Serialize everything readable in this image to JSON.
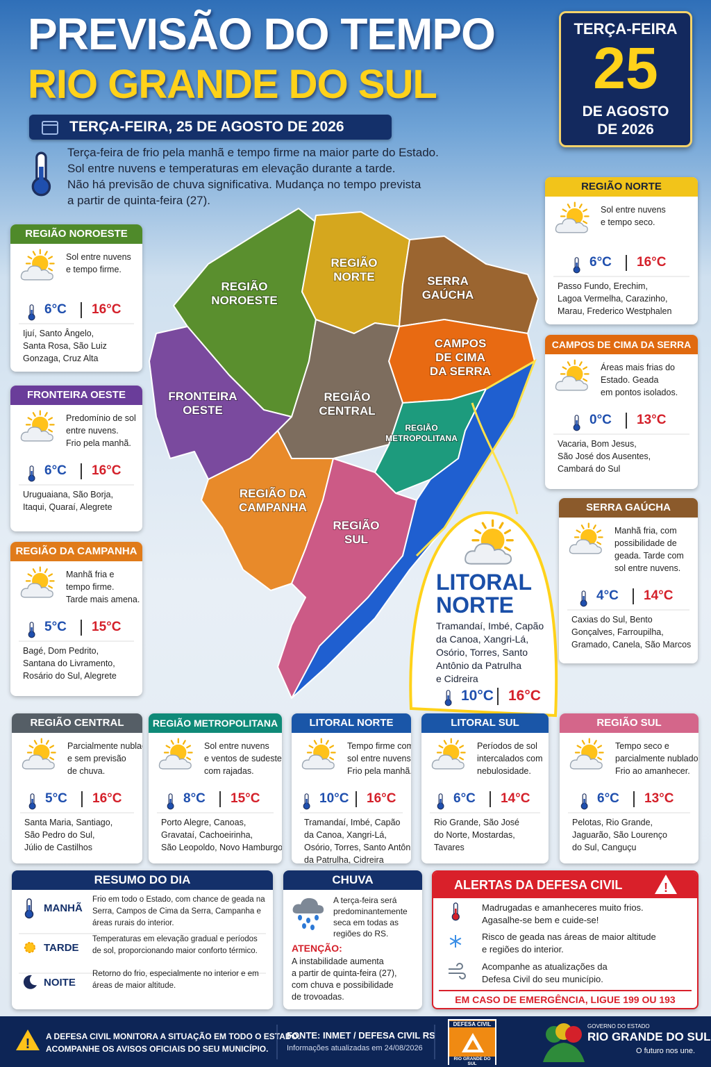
{
  "header": {
    "title": "PREVISÃO DO TEMPO",
    "subtitle": "RIO GRANDE DO SUL",
    "date_bar": "TERÇA-FEIRA, 25 DE AGOSTO DE 2026"
  },
  "date_box": {
    "weekday": "TERÇA-FEIRA",
    "day": "25",
    "month": "DE AGOSTO",
    "year": "DE 2026"
  },
  "summary": [
    "Terça-feira de frio pela manhã e tempo firme na maior parte do Estado.",
    "Sol entre nuvens e temperaturas em elevação durante a tarde.",
    "Não há previsão de chuva significativa. Mudança no tempo prevista",
    "a partir de quinta-feira (27)."
  ],
  "map_labels": [
    [
      "REGIÃO",
      "NOROESTE"
    ],
    [
      "REGIÃO",
      "NORTE"
    ],
    [
      "SERRA",
      "GAÚCHA"
    ],
    [
      "CAMPOS",
      "DE CIMA",
      "DA SERRA"
    ],
    [
      "FRONTEIRA",
      "OESTE"
    ],
    [
      "REGIÃO",
      "CENTRAL"
    ],
    [
      "REGIÃO",
      "METROPOLITANA"
    ],
    [
      "REGIÃO DA",
      "CAMPANHA"
    ],
    [
      "REGIÃO",
      "SUL"
    ]
  ],
  "side_cards": [
    {
      "title": "REGIÃO NOROESTE",
      "description": [
        "Sol entre nuvens",
        "e tempo firme."
      ],
      "min": "6°C",
      "max": "16°C",
      "cities": [
        "Ijuí, Santo Ângelo,",
        "Santa Rosa, São Luiz",
        "Gonzaga, Cruz Alta"
      ]
    },
    {
      "title": "FRONTEIRA OESTE",
      "description": [
        "Predomínio de sol",
        "entre nuvens.",
        "Frio pela manhã."
      ],
      "min": "6°C",
      "max": "16°C",
      "cities": [
        "Uruguaiana, São Borja,",
        "Itaqui, Quaraí, Alegrete"
      ]
    },
    {
      "title": "REGIÃO DA CAMPANHA",
      "description": [
        "Manhã fria e",
        "tempo firme.",
        "Tarde mais amena."
      ],
      "min": "5°C",
      "max": "15°C",
      "cities": [
        "Bagé, Dom Pedrito,",
        "Santana do Livramento,",
        "Rosário do Sul, Alegrete"
      ]
    },
    {
      "title": "REGIÃO NORTE",
      "description": [
        "Sol entre nuvens",
        "e tempo seco."
      ],
      "min": "6°C",
      "max": "16°C",
      "cities": [
        "Passo Fundo, Erechim,",
        "Lagoa Vermelha, Carazinho,",
        "Marau, Frederico Westphalen"
      ]
    },
    {
      "title": "CAMPOS DE CIMA DA SERRA",
      "description": [
        "Áreas mais frias do",
        "Estado. Geada",
        "em pontos isolados."
      ],
      "min": "0°C",
      "max": "13°C",
      "cities": [
        "Vacaria, Bom Jesus,",
        "São José dos Ausentes,",
        "Cambará do Sul"
      ]
    },
    {
      "title": "SERRA GAÚCHA",
      "description": [
        "Manhã fria, com",
        "possibilidade de",
        "geada. Tarde com",
        "sol entre nuvens."
      ],
      "min": "4°C",
      "max": "14°C",
      "cities": [
        "Caxias do Sul, Bento",
        "Gonçalves, Farroupilha,",
        "Gramado, Canela, São Marcos"
      ]
    }
  ],
  "callout": {
    "title": [
      "LITORAL",
      "NORTE"
    ],
    "cities": [
      "Tramandaí, Imbé, Capão",
      "da Canoa, Xangri-Lá,",
      "Osório, Torres, Santo",
      "Antônio da Patrulha",
      "e Cidreira"
    ],
    "min": "10°C",
    "max": "16°C"
  },
  "bottom_cards": [
    {
      "title": "REGIÃO CENTRAL",
      "description": [
        "Parcialmente nublado",
        "e sem previsão",
        "de chuva."
      ],
      "min": "5°C",
      "max": "16°C",
      "cities": [
        "Santa Maria, Santiago,",
        "São Pedro do Sul,",
        "Júlio de Castilhos"
      ]
    },
    {
      "title": "REGIÃO METROPOLITANA",
      "description": [
        "Sol entre nuvens",
        "e ventos de sudeste",
        "com rajadas."
      ],
      "min": "8°C",
      "max": "15°C",
      "cities": [
        "Porto Alegre, Canoas,",
        "Gravataí, Cachoeirinha,",
        "São Leopoldo, Novo Hamburgo"
      ]
    },
    {
      "title": "LITORAL NORTE",
      "description": [
        "Tempo firme com",
        "sol entre nuvens.",
        "Frio pela manhã."
      ],
      "min": "10°C",
      "max": "16°C",
      "cities": [
        "Tramandaí, Imbé, Capão",
        "da Canoa, Xangri-Lá,",
        "Osório, Torres, Santo Antônio",
        "da Patrulha, Cidreira"
      ]
    },
    {
      "title": "LITORAL SUL",
      "description": [
        "Períodos de sol",
        "intercalados com",
        "nebulosidade."
      ],
      "min": "6°C",
      "max": "14°C",
      "cities": [
        "Rio Grande, São José",
        "do Norte, Mostardas,",
        "Tavares"
      ]
    },
    {
      "title": "REGIÃO SUL",
      "description": [
        "Tempo seco e",
        "parcialmente nublado.",
        "Frio ao amanhecer."
      ],
      "min": "6°C",
      "max": "13°C",
      "cities": [
        "Pelotas, Rio Grande,",
        "Jaguarão, São Lourenço",
        "do Sul, Canguçu"
      ]
    }
  ],
  "resumo": {
    "title": "RESUMO DO DIA",
    "rows": [
      {
        "label": "MANHÃ",
        "text": [
          "Frio em todo o Estado, com chance de geada na",
          "Serra, Campos de Cima da Serra, Campanha e",
          "áreas rurais do interior."
        ]
      },
      {
        "label": "TARDE",
        "text": [
          "Temperaturas em elevação gradual e períodos",
          "de sol, proporcionando maior conforto térmico."
        ]
      },
      {
        "label": "NOITE",
        "text": [
          "Retorno do frio, especialmente no interior e em",
          "áreas de maior altitude."
        ]
      }
    ]
  },
  "chuva": {
    "title": "CHUVA",
    "text": [
      "A terça-feira será",
      "predominantemente",
      "seca em todas as",
      "regiões do RS."
    ],
    "attention": "ATENÇÃO:",
    "attention_text": [
      "A instabilidade aumenta",
      "a partir de quinta-feira (27),",
      "com chuva e possibilidade",
      "de trovoadas."
    ]
  },
  "alertas": {
    "title": "ALERTAS DA DEFESA CIVIL",
    "items": [
      [
        "Madrugadas e amanheceres muito frios.",
        "Agasalhe-se bem e cuide-se!"
      ],
      [
        "Risco de geada nas áreas de maior altitude",
        "e regiões do interior."
      ],
      [
        "Acompanhe as atualizações da",
        "Defesa Civil do seu município."
      ]
    ],
    "emergency": "EM CASO DE EMERGÊNCIA, LIGUE 199 OU 193"
  },
  "footer": {
    "notice": [
      "A DEFESA CIVIL MONITORA A SITUAÇÃO EM TODO O ESTADO.",
      "ACOMPANHE OS AVISOS OFICIAIS DO SEU MUNICÍPIO."
    ],
    "source": "FONTE: INMET / DEFESA CIVIL RS",
    "updated": "Informações atualizadas em 24/08/2026",
    "defesa_logo": [
      "DEFESA CIVIL",
      "RIO GRANDE DO SUL"
    ],
    "gov_logo": [
      "GOVERNO DO ESTADO",
      "RIO GRANDE DO SUL",
      "O futuro nos une."
    ]
  }
}
